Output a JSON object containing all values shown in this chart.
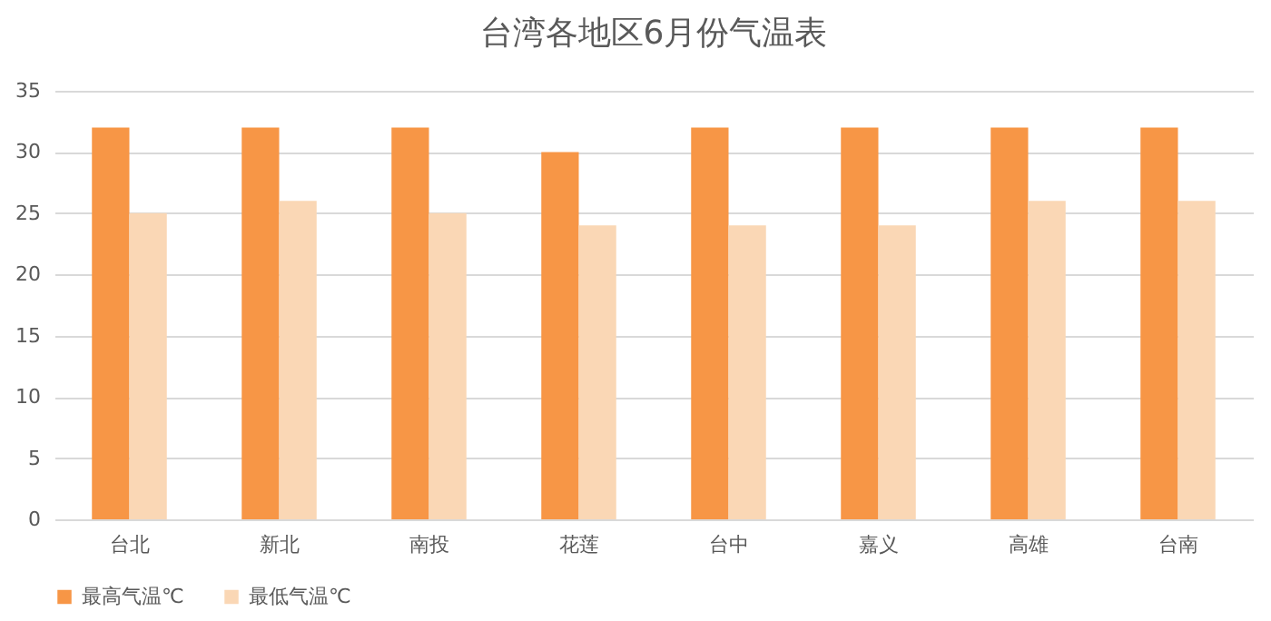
{
  "chart_data": {
    "type": "bar",
    "title": "台湾各地区6月份气温表",
    "categories": [
      "台北",
      "新北",
      "南投",
      "花莲",
      "台中",
      "嘉义",
      "高雄",
      "台南"
    ],
    "series": [
      {
        "name": "最高气温℃",
        "color": "#f79646",
        "values": [
          32,
          32,
          32,
          30,
          32,
          32,
          32,
          32
        ]
      },
      {
        "name": "最低气温℃",
        "color": "#fad7b5",
        "values": [
          25,
          26,
          25,
          24,
          24,
          24,
          26,
          26
        ]
      }
    ],
    "ylim": [
      0,
      35
    ],
    "yticks": [
      0,
      5,
      10,
      15,
      20,
      25,
      30,
      35
    ],
    "grid": "y",
    "legend": "bottom"
  }
}
